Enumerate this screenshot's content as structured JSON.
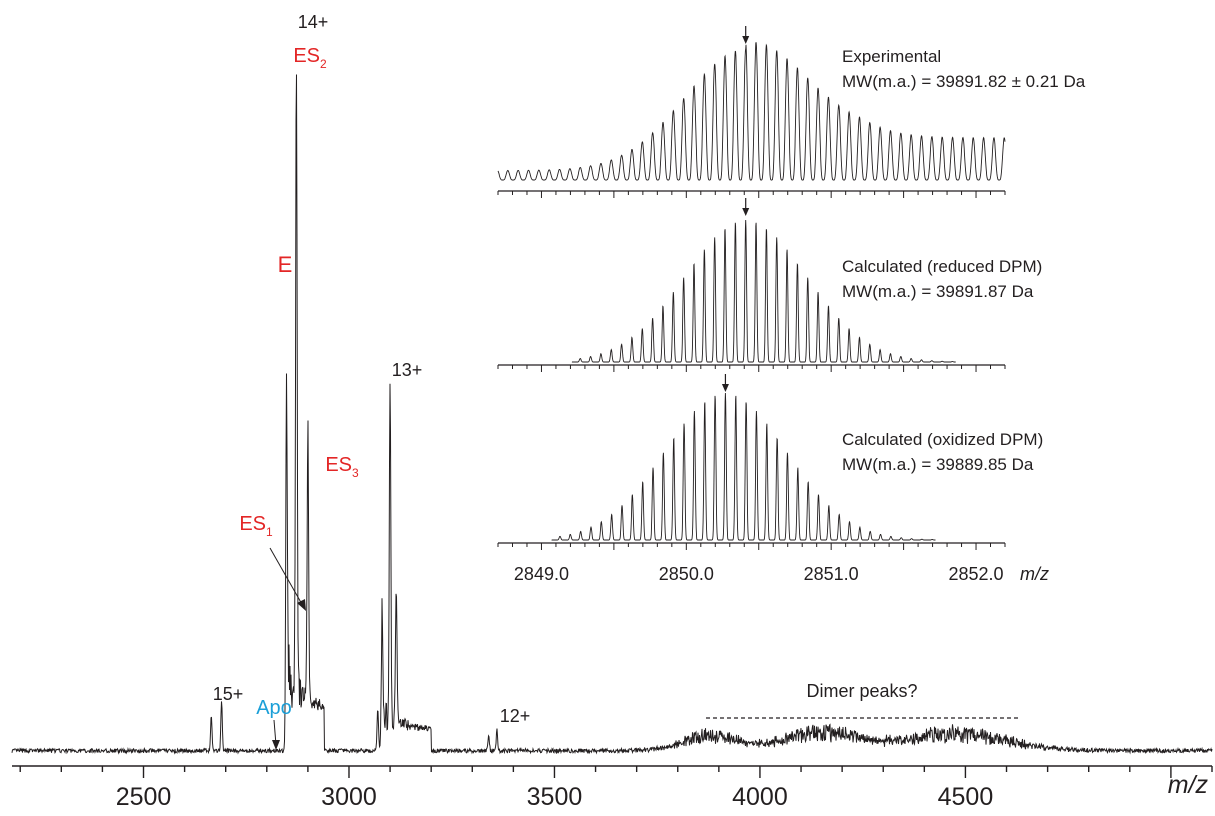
{
  "chart_data": [
    {
      "type": "line",
      "role": "main-spectrum",
      "xlabel": "m/z",
      "xlim": [
        2180,
        5100
      ],
      "x_ticks": [
        2500,
        3000,
        3500,
        4000,
        4500
      ],
      "x_tick_labels": [
        "2500",
        "3000",
        "3500",
        "4000",
        "4500"
      ],
      "ylim": [
        0,
        100
      ],
      "grid": false,
      "peaks": [
        {
          "x": 2665,
          "y": 5
        },
        {
          "x": 2690,
          "y": 7
        },
        {
          "x": 2848,
          "y": 54
        },
        {
          "x": 2872,
          "y": 91
        },
        {
          "x": 2900,
          "y": 39
        },
        {
          "x": 3070,
          "y": 6
        },
        {
          "x": 3080,
          "y": 15
        },
        {
          "x": 3100,
          "y": 48
        },
        {
          "x": 3115,
          "y": 20
        },
        {
          "x": 3340,
          "y": 2
        },
        {
          "x": 3360,
          "y": 3
        }
      ],
      "annotations": [
        {
          "text": "15+",
          "color": "#231f20"
        },
        {
          "text": "Apo",
          "color": "#1a9fd8"
        },
        {
          "text": "14+",
          "color": "#231f20"
        },
        {
          "text": "ES",
          "sub": "2",
          "color": "#e32626"
        },
        {
          "text": "E",
          "color": "#e32626"
        },
        {
          "text": "ES",
          "sub": "1",
          "color": "#e32626"
        },
        {
          "text": "ES",
          "sub": "3",
          "color": "#e32626"
        },
        {
          "text": "13+",
          "color": "#231f20"
        },
        {
          "text": "12+",
          "color": "#231f20"
        },
        {
          "text": "Dimer peaks?",
          "color": "#231f20"
        }
      ]
    },
    {
      "type": "line",
      "role": "inset-isotope-envelopes",
      "xlabel": "m/z",
      "xlim": [
        2848.7,
        2852.2
      ],
      "x_ticks": [
        2849.0,
        2850.0,
        2851.0,
        2852.0
      ],
      "x_tick_labels": [
        "2849.0",
        "2850.0",
        "2851.0",
        "2852.0"
      ],
      "isotope_spacing": 0.0714,
      "series": [
        {
          "name": "Experimental",
          "mw_label": "MW(m.a.) = 39891.82 ± 0.21 Da",
          "center": 2850.41,
          "marker_x": 2850.41
        },
        {
          "name": "Calculated (reduced DPM)",
          "mw_label": "MW(m.a.) = 39891.87 Da",
          "center": 2850.41,
          "marker_x": 2850.41
        },
        {
          "name": "Calculated (oxidized DPM)",
          "mw_label": "MW(m.a.) = 39889.85 Da",
          "center": 2850.27,
          "marker_x": 2850.27
        }
      ]
    }
  ],
  "colors": {
    "trace": "#231f20",
    "red_label": "#e32626",
    "blue_label": "#1a9fd8"
  }
}
